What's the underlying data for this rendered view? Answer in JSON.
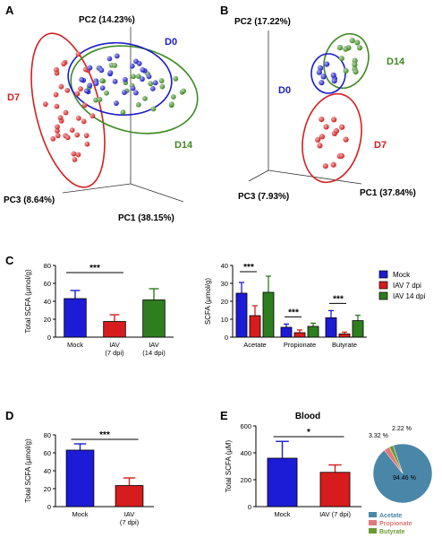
{
  "panels": {
    "A": "A",
    "B": "B",
    "C": "C",
    "D": "D",
    "E": "E"
  },
  "colors": {
    "d0": "#1c1cc8",
    "d7": "#d22020",
    "d14": "#3e8a22",
    "mock": "#1c1cd6",
    "iav7": "#d61c1c",
    "iav14": "#2e7d1e",
    "acetate": "#4a86a8",
    "propionate": "#e07a78",
    "butyrate": "#6a9a32"
  },
  "chart_data": [
    {
      "type": "scatter",
      "panel": "A",
      "axes": {
        "pc1": "PC1 (38.15%)",
        "pc2": "PC2 (14.23%)",
        "pc3": "PC3 (8.64%)"
      },
      "groups": [
        {
          "name": "D0",
          "color": "#1c1cc8"
        },
        {
          "name": "D7",
          "color": "#d22020"
        },
        {
          "name": "D14",
          "color": "#3e8a22"
        }
      ]
    },
    {
      "type": "scatter",
      "panel": "B",
      "axes": {
        "pc1": "PC1 (37.84%)",
        "pc2": "PC2 (17.22%)",
        "pc3": "PC3 (7.93%)"
      },
      "groups": [
        {
          "name": "D0",
          "color": "#1c1cc8"
        },
        {
          "name": "D14",
          "color": "#3e8a22"
        },
        {
          "name": "D7",
          "color": "#d22020"
        }
      ]
    },
    {
      "type": "bar",
      "panel": "C-left",
      "categories": [
        "Mock",
        "IAV\n(7 dpi)",
        "IAV\n(14 dpi)"
      ],
      "values": [
        43,
        17.5,
        41.5
      ],
      "errors": [
        9,
        7.5,
        12.5
      ],
      "ylabel": "Total SCFA (µmol/g)",
      "ylim": [
        0,
        80
      ],
      "yticks": [
        0,
        20,
        40,
        60,
        80
      ],
      "significance": [
        {
          "from": 0,
          "to": 1,
          "label": "***"
        }
      ]
    },
    {
      "type": "bar",
      "panel": "C-right",
      "categories": [
        "Acetate",
        "Propionate",
        "Butyrate"
      ],
      "series": [
        {
          "name": "Mock",
          "values": [
            24.5,
            5.5,
            10.8
          ],
          "errors": [
            6,
            1.8,
            4
          ]
        },
        {
          "name": "IAV 7 dpi",
          "values": [
            12,
            2.5,
            1.8
          ],
          "errors": [
            5.5,
            1.5,
            1
          ]
        },
        {
          "name": "IAV 14 dpi",
          "values": [
            25,
            6,
            9.2
          ],
          "errors": [
            9,
            1.8,
            3
          ]
        }
      ],
      "ylabel": "SCFA (µmol/g)",
      "ylim": [
        0,
        40
      ],
      "yticks": [
        0,
        10,
        20,
        30,
        40
      ],
      "significance": [
        {
          "group": 0,
          "label": "***"
        },
        {
          "group": 1,
          "label": "***"
        },
        {
          "group": 2,
          "label": "***"
        }
      ],
      "legend": "top-right"
    },
    {
      "type": "bar",
      "panel": "D",
      "categories": [
        "Mock",
        "IAV\n(7 dpi)"
      ],
      "values": [
        63,
        23.5
      ],
      "errors": [
        7,
        8.5
      ],
      "ylabel": "Total SCFA (µmol/g)",
      "ylim": [
        0,
        80
      ],
      "yticks": [
        0,
        20,
        40,
        60,
        80
      ],
      "significance": [
        {
          "from": 0,
          "to": 1,
          "label": "***"
        }
      ]
    },
    {
      "type": "bar",
      "panel": "E-left",
      "title": "Blood",
      "categories": [
        "Mock",
        "IAV (7 dpi)"
      ],
      "values": [
        360,
        255
      ],
      "errors": [
        125,
        55
      ],
      "ylabel": "Total SCFA (µM)",
      "ylim": [
        0,
        600
      ],
      "yticks": [
        0,
        200,
        400,
        600
      ],
      "significance": [
        {
          "from": 0,
          "to": 1,
          "label": "*"
        }
      ]
    },
    {
      "type": "pie",
      "panel": "E-right",
      "slices": [
        {
          "name": "Acetate",
          "value": 94.46,
          "label": "94.46 %"
        },
        {
          "name": "Propionate",
          "value": 3.32,
          "label": "3.32 %"
        },
        {
          "name": "Butyrate",
          "value": 2.22,
          "label": "2.22 %"
        }
      ]
    }
  ]
}
